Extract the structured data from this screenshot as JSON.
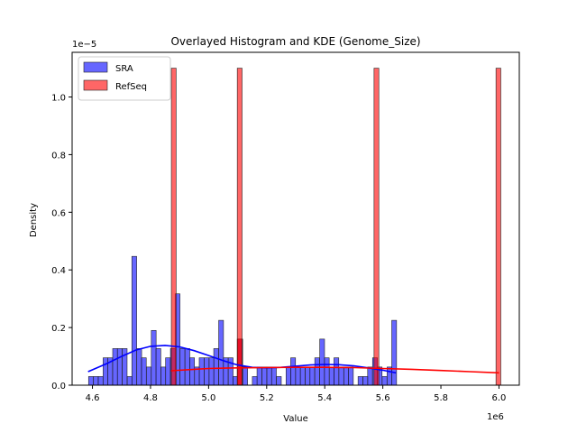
{
  "chart_data": {
    "type": "bar",
    "title": "Overlayed Histogram and KDE (Genome_Size)",
    "xlabel": "Value",
    "ylabel": "Density",
    "x_offset_label": "1e6",
    "y_offset_label": "1e−5",
    "xlim": [
      4.53,
      6.07
    ],
    "ylim": [
      0,
      1.155
    ],
    "x_ticks": [
      4.6,
      4.8,
      5.0,
      5.2,
      5.4,
      5.6,
      5.8,
      6.0
    ],
    "x_tick_labels": [
      "4.6",
      "4.8",
      "5.0",
      "5.2",
      "5.4",
      "5.6",
      "5.8",
      "6.0"
    ],
    "y_ticks": [
      0,
      0.2,
      0.4,
      0.6,
      0.8,
      1.0
    ],
    "y_tick_labels": [
      "0.0",
      "0.2",
      "0.4",
      "0.6",
      "0.8",
      "1.0"
    ],
    "grid": false,
    "legend_position": "top-left",
    "series": [
      {
        "name": "SRA",
        "color": "#0000ff",
        "kde_color": "#0000ff",
        "bars": [
          {
            "x": 4.595,
            "y": 0.03
          },
          {
            "x": 4.612,
            "y": 0.03
          },
          {
            "x": 4.628,
            "y": 0.03
          },
          {
            "x": 4.645,
            "y": 0.095
          },
          {
            "x": 4.661,
            "y": 0.095
          },
          {
            "x": 4.678,
            "y": 0.127
          },
          {
            "x": 4.694,
            "y": 0.127
          },
          {
            "x": 4.711,
            "y": 0.127
          },
          {
            "x": 4.728,
            "y": 0.03
          },
          {
            "x": 4.744,
            "y": 0.447
          },
          {
            "x": 4.761,
            "y": 0.127
          },
          {
            "x": 4.777,
            "y": 0.095
          },
          {
            "x": 4.794,
            "y": 0.063
          },
          {
            "x": 4.811,
            "y": 0.19
          },
          {
            "x": 4.827,
            "y": 0.127
          },
          {
            "x": 4.844,
            "y": 0.063
          },
          {
            "x": 4.86,
            "y": 0.095
          },
          {
            "x": 4.877,
            "y": 0.127
          },
          {
            "x": 4.893,
            "y": 0.317
          },
          {
            "x": 4.91,
            "y": 0.127
          },
          {
            "x": 4.927,
            "y": 0.127
          },
          {
            "x": 4.943,
            "y": 0.095
          },
          {
            "x": 4.96,
            "y": 0.063
          },
          {
            "x": 4.976,
            "y": 0.095
          },
          {
            "x": 4.993,
            "y": 0.095
          },
          {
            "x": 5.01,
            "y": 0.095
          },
          {
            "x": 5.026,
            "y": 0.127
          },
          {
            "x": 5.043,
            "y": 0.225
          },
          {
            "x": 5.059,
            "y": 0.095
          },
          {
            "x": 5.076,
            "y": 0.095
          },
          {
            "x": 5.092,
            "y": 0.03
          },
          {
            "x": 5.109,
            "y": 0.16
          },
          {
            "x": 5.126,
            "y": 0.063
          },
          {
            "x": 5.159,
            "y": 0.03
          },
          {
            "x": 5.175,
            "y": 0.063
          },
          {
            "x": 5.192,
            "y": 0.063
          },
          {
            "x": 5.209,
            "y": 0.063
          },
          {
            "x": 5.225,
            "y": 0.063
          },
          {
            "x": 5.242,
            "y": 0.03
          },
          {
            "x": 5.275,
            "y": 0.063
          },
          {
            "x": 5.291,
            "y": 0.095
          },
          {
            "x": 5.308,
            "y": 0.063
          },
          {
            "x": 5.324,
            "y": 0.063
          },
          {
            "x": 5.341,
            "y": 0.063
          },
          {
            "x": 5.357,
            "y": 0.063
          },
          {
            "x": 5.374,
            "y": 0.095
          },
          {
            "x": 5.391,
            "y": 0.16
          },
          {
            "x": 5.407,
            "y": 0.095
          },
          {
            "x": 5.424,
            "y": 0.063
          },
          {
            "x": 5.44,
            "y": 0.095
          },
          {
            "x": 5.457,
            "y": 0.063
          },
          {
            "x": 5.474,
            "y": 0.063
          },
          {
            "x": 5.49,
            "y": 0.063
          },
          {
            "x": 5.523,
            "y": 0.03
          },
          {
            "x": 5.54,
            "y": 0.03
          },
          {
            "x": 5.556,
            "y": 0.063
          },
          {
            "x": 5.573,
            "y": 0.095
          },
          {
            "x": 5.589,
            "y": 0.063
          },
          {
            "x": 5.606,
            "y": 0.03
          },
          {
            "x": 5.623,
            "y": 0.063
          },
          {
            "x": 5.639,
            "y": 0.225
          }
        ],
        "kde_x": [
          4.585,
          4.65,
          4.7,
          4.75,
          4.8,
          4.85,
          4.9,
          4.95,
          5.0,
          5.05,
          5.1,
          5.15,
          5.2,
          5.25,
          5.3,
          5.35,
          5.4,
          5.45,
          5.5,
          5.55,
          5.6,
          5.645
        ],
        "kde_y": [
          0.047,
          0.075,
          0.1,
          0.122,
          0.135,
          0.138,
          0.133,
          0.12,
          0.103,
          0.085,
          0.07,
          0.062,
          0.06,
          0.062,
          0.066,
          0.07,
          0.072,
          0.071,
          0.067,
          0.06,
          0.052,
          0.043
        ]
      },
      {
        "name": "RefSeq",
        "color": "#ff0000",
        "kde_color": "#ff0000",
        "bars": [
          {
            "x": 4.88,
            "y": 1.1
          },
          {
            "x": 5.107,
            "y": 0.16
          },
          {
            "x": 5.107,
            "y": 1.1
          },
          {
            "x": 5.578,
            "y": 1.1
          },
          {
            "x": 5.998,
            "y": 1.1
          }
        ],
        "kde_x": [
          4.87,
          4.95,
          5.0,
          5.1,
          5.2,
          5.3,
          5.4,
          5.5,
          5.6,
          5.7,
          5.8,
          5.9,
          6.0
        ],
        "kde_y": [
          0.05,
          0.055,
          0.058,
          0.06,
          0.061,
          0.062,
          0.062,
          0.061,
          0.058,
          0.055,
          0.051,
          0.047,
          0.043
        ]
      }
    ]
  }
}
